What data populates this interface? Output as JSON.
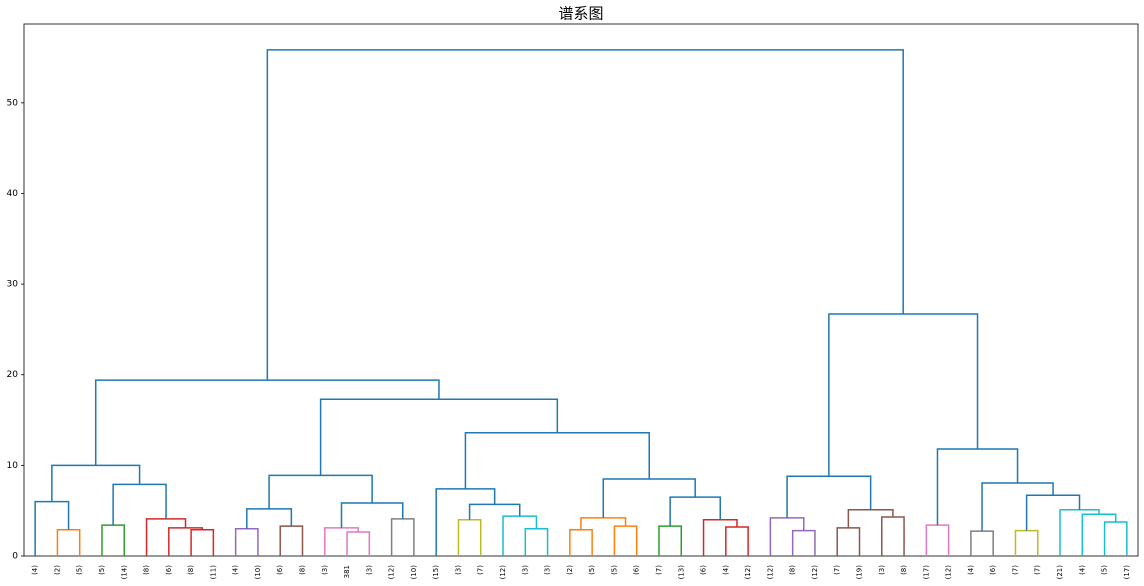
{
  "chart_data": {
    "type": "dendrogram",
    "title": "谱系图",
    "ylim": [
      0,
      58.7
    ],
    "yticks": [
      0,
      10,
      20,
      30,
      40,
      50
    ],
    "tree": {
      "height": 55.85,
      "color": "#1f77b4",
      "children": [
        {
          "height": 19.4,
          "color": "#1f77b4",
          "children": [
            {
              "height": 10.0,
              "color": "#1f77b4",
              "children": [
                {
                  "height": 6.0,
                  "color": "#1f77b4",
                  "children": [
                    {
                      "label": "(4)"
                    },
                    {
                      "height": 2.9,
                      "color": "#ff7f0e",
                      "children": [
                        {
                          "label": "(2)"
                        },
                        {
                          "label": "(5)"
                        }
                      ]
                    }
                  ]
                },
                {
                  "height": 7.9,
                  "color": "#1f77b4",
                  "children": [
                    {
                      "height": 3.4,
                      "color": "#2ca02c",
                      "children": [
                        {
                          "label": "(5)"
                        },
                        {
                          "label": "(14)"
                        }
                      ]
                    },
                    {
                      "height": 4.1,
                      "color": "#d62728",
                      "children": [
                        {
                          "label": "(8)"
                        },
                        {
                          "height": 3.1,
                          "color": "#d62728",
                          "children": [
                            {
                              "label": "(6)"
                            },
                            {
                              "height": 2.9,
                              "color": "#d62728",
                              "children": [
                                {
                                  "label": "(8)"
                                },
                                {
                                  "label": "(11)"
                                }
                              ]
                            }
                          ]
                        }
                      ]
                    }
                  ]
                }
              ]
            },
            {
              "height": 17.3,
              "color": "#1f77b4",
              "children": [
                {
                  "height": 8.9,
                  "color": "#1f77b4",
                  "children": [
                    {
                      "height": 5.2,
                      "color": "#1f77b4",
                      "children": [
                        {
                          "height": 3.0,
                          "color": "#9467bd",
                          "children": [
                            {
                              "label": "(4)"
                            },
                            {
                              "label": "(10)"
                            }
                          ]
                        },
                        {
                          "height": 3.3,
                          "color": "#8c564b",
                          "children": [
                            {
                              "label": "(6)"
                            },
                            {
                              "label": "(8)"
                            }
                          ]
                        }
                      ]
                    },
                    {
                      "height": 5.85,
                      "color": "#1f77b4",
                      "children": [
                        {
                          "height": 3.1,
                          "color": "#e377c2",
                          "children": [
                            {
                              "label": "(3)"
                            },
                            {
                              "height": 2.65,
                              "color": "#e377c2",
                              "children": [
                                {
                                  "label": "381"
                                },
                                {
                                  "label": "(3)"
                                }
                              ]
                            }
                          ]
                        },
                        {
                          "height": 4.1,
                          "color": "#7f7f7f",
                          "children": [
                            {
                              "label": "(12)"
                            },
                            {
                              "label": "(10)"
                            }
                          ]
                        }
                      ]
                    }
                  ]
                },
                {
                  "height": 13.6,
                  "color": "#1f77b4",
                  "children": [
                    {
                      "height": 7.4,
                      "color": "#1f77b4",
                      "children": [
                        {
                          "label": "(15)"
                        },
                        {
                          "height": 5.7,
                          "color": "#1f77b4",
                          "children": [
                            {
                              "height": 4.0,
                              "color": "#bcbd22",
                              "children": [
                                {
                                  "label": "(3)"
                                },
                                {
                                  "label": "(7)"
                                }
                              ]
                            },
                            {
                              "height": 4.4,
                              "color": "#17becf",
                              "children": [
                                {
                                  "label": "(12)"
                                },
                                {
                                  "height": 3.0,
                                  "color": "#17becf",
                                  "children": [
                                    {
                                      "label": "(3)"
                                    },
                                    {
                                      "label": "(3)"
                                    }
                                  ]
                                }
                              ]
                            }
                          ]
                        }
                      ]
                    },
                    {
                      "height": 8.5,
                      "color": "#1f77b4",
                      "children": [
                        {
                          "height": 4.2,
                          "color": "#ff7f0e",
                          "children": [
                            {
                              "height": 2.9,
                              "color": "#ff7f0e",
                              "children": [
                                {
                                  "label": "(2)"
                                },
                                {
                                  "label": "(5)"
                                }
                              ]
                            },
                            {
                              "height": 3.3,
                              "color": "#ff7f0e",
                              "children": [
                                {
                                  "label": "(5)"
                                },
                                {
                                  "label": "(6)"
                                }
                              ]
                            }
                          ]
                        },
                        {
                          "height": 6.5,
                          "color": "#1f77b4",
                          "children": [
                            {
                              "height": 3.3,
                              "color": "#2ca02c",
                              "children": [
                                {
                                  "label": "(7)"
                                },
                                {
                                  "label": "(13)"
                                }
                              ]
                            },
                            {
                              "height": 4.0,
                              "color": "#d62728",
                              "children": [
                                {
                                  "label": "(6)"
                                },
                                {
                                  "height": 3.2,
                                  "color": "#d62728",
                                  "children": [
                                    {
                                      "label": "(4)"
                                    },
                                    {
                                      "label": "(12)"
                                    }
                                  ]
                                }
                              ]
                            }
                          ]
                        }
                      ]
                    }
                  ]
                }
              ]
            }
          ]
        },
        {
          "height": 26.7,
          "color": "#1f77b4",
          "children": [
            {
              "height": 8.8,
              "color": "#1f77b4",
              "children": [
                {
                  "height": 4.2,
                  "color": "#9467bd",
                  "children": [
                    {
                      "label": "(12)"
                    },
                    {
                      "height": 2.8,
                      "color": "#9467bd",
                      "children": [
                        {
                          "label": "(8)"
                        },
                        {
                          "label": "(12)"
                        }
                      ]
                    }
                  ]
                },
                {
                  "height": 5.1,
                  "color": "#8c564b",
                  "children": [
                    {
                      "height": 3.1,
                      "color": "#8c564b",
                      "children": [
                        {
                          "label": "(7)"
                        },
                        {
                          "label": "(19)"
                        }
                      ]
                    },
                    {
                      "height": 4.3,
                      "color": "#8c564b",
                      "children": [
                        {
                          "label": "(3)"
                        },
                        {
                          "label": "(8)"
                        }
                      ]
                    }
                  ]
                }
              ]
            },
            {
              "height": 11.8,
              "color": "#1f77b4",
              "children": [
                {
                  "height": 3.4,
                  "color": "#e377c2",
                  "children": [
                    {
                      "label": "(17)"
                    },
                    {
                      "label": "(12)"
                    }
                  ]
                },
                {
                  "height": 8.05,
                  "color": "#1f77b4",
                  "children": [
                    {
                      "height": 2.75,
                      "color": "#7f7f7f",
                      "children": [
                        {
                          "label": "(4)"
                        },
                        {
                          "label": "(6)"
                        }
                      ]
                    },
                    {
                      "height": 6.7,
                      "color": "#1f77b4",
                      "children": [
                        {
                          "height": 2.8,
                          "color": "#bcbd22",
                          "children": [
                            {
                              "label": "(7)"
                            },
                            {
                              "label": "(7)"
                            }
                          ]
                        },
                        {
                          "height": 5.1,
                          "color": "#17becf",
                          "children": [
                            {
                              "label": "(21)"
                            },
                            {
                              "height": 4.6,
                              "color": "#17becf",
                              "children": [
                                {
                                  "label": "(4)"
                                },
                                {
                                  "height": 3.75,
                                  "color": "#17becf",
                                  "children": [
                                    {
                                      "label": "(5)"
                                    },
                                    {
                                      "label": "(17)"
                                    }
                                  ]
                                }
                              ]
                            }
                          ]
                        }
                      ]
                    }
                  ]
                }
              ]
            }
          ]
        }
      ]
    }
  }
}
